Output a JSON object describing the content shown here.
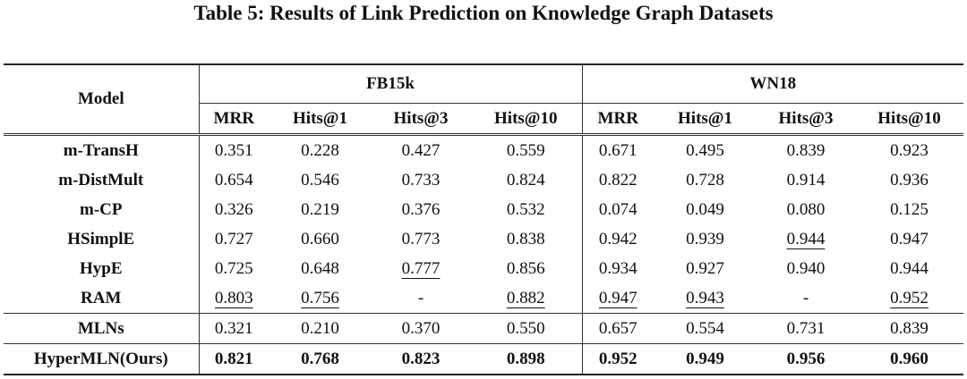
{
  "title": "Table 5: Results of Link Prediction on Knowledge Graph Datasets",
  "table": {
    "model_header": "Model",
    "groups": [
      "FB15k",
      "WN18"
    ],
    "columns": [
      "MRR",
      "Hits@1",
      "Hits@3",
      "Hits@10",
      "MRR",
      "Hits@1",
      "Hits@3",
      "Hits@10"
    ],
    "rows": [
      [
        "m-TransH",
        "0.351",
        "0.228",
        "0.427",
        "0.559",
        "0.671",
        "0.495",
        "0.839",
        "0.923"
      ],
      [
        "m-DistMult",
        "0.654",
        "0.546",
        "0.733",
        "0.824",
        "0.822",
        "0.728",
        "0.914",
        "0.936"
      ],
      [
        "m-CP",
        "0.326",
        "0.219",
        "0.376",
        "0.532",
        "0.074",
        "0.049",
        "0.080",
        "0.125"
      ],
      [
        "HSimplE",
        "0.727",
        "0.660",
        "0.773",
        "0.838",
        "0.942",
        "0.939",
        "0.944",
        "0.947"
      ],
      [
        "HypE",
        "0.725",
        "0.648",
        "0.777",
        "0.856",
        "0.934",
        "0.927",
        "0.940",
        "0.944"
      ],
      [
        "RAM",
        "0.803",
        "0.756",
        "-",
        "0.882",
        "0.947",
        "0.943",
        "-",
        "0.952"
      ],
      [
        "MLNs",
        "0.321",
        "0.210",
        "0.370",
        "0.550",
        "0.657",
        "0.554",
        "0.731",
        "0.839"
      ],
      [
        "HyperMLN(Ours)",
        "0.821",
        "0.768",
        "0.823",
        "0.898",
        "0.952",
        "0.949",
        "0.956",
        "0.960"
      ]
    ]
  }
}
